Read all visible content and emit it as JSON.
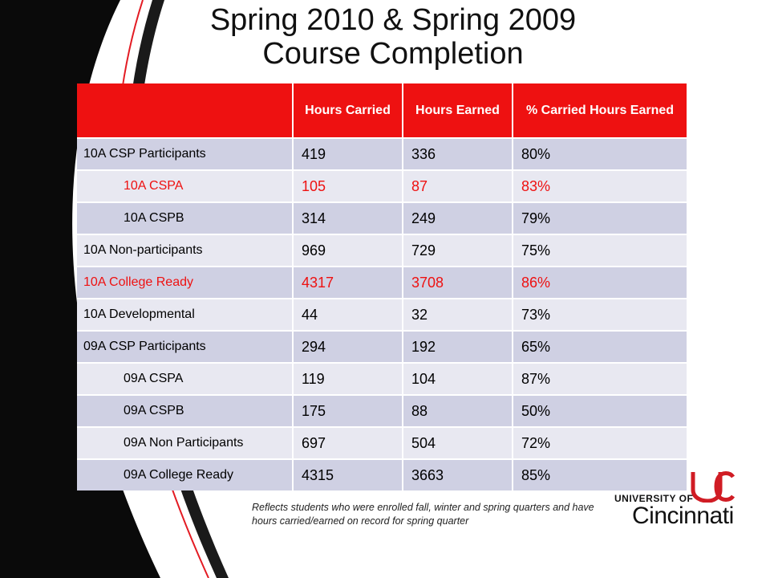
{
  "title": {
    "line1": "Spring 2010 & Spring 2009",
    "line2": "Course Completion"
  },
  "table": {
    "headers": [
      "",
      "Hours Carried",
      "Hours Earned",
      "% Carried Hours Earned"
    ],
    "rows": [
      {
        "label": "10A CSP Participants",
        "carried": "419",
        "earned": "336",
        "pct": "80%",
        "indent": false,
        "highlight": false
      },
      {
        "label": "10A CSPA",
        "carried": "105",
        "earned": "87",
        "pct": "83%",
        "indent": true,
        "highlight": true
      },
      {
        "label": "10A CSPB",
        "carried": "314",
        "earned": "249",
        "pct": "79%",
        "indent": true,
        "highlight": false
      },
      {
        "label": "10A Non-participants",
        "carried": "969",
        "earned": "729",
        "pct": "75%",
        "indent": false,
        "highlight": false
      },
      {
        "label": "10A College Ready",
        "carried": "4317",
        "earned": "3708",
        "pct": "86%",
        "indent": false,
        "highlight": true
      },
      {
        "label": "10A Developmental",
        "carried": "44",
        "earned": "32",
        "pct": "73%",
        "indent": false,
        "highlight": false
      },
      {
        "label": "09A CSP Participants",
        "carried": "294",
        "earned": "192",
        "pct": "65%",
        "indent": false,
        "highlight": false
      },
      {
        "label": "09A CSPA",
        "carried": "119",
        "earned": "104",
        "pct": "87%",
        "indent": true,
        "highlight": false
      },
      {
        "label": "09A CSPB",
        "carried": "175",
        "earned": "88",
        "pct": "50%",
        "indent": true,
        "highlight": false
      },
      {
        "label": "09A Non Participants",
        "carried": "697",
        "earned": "504",
        "pct": "72%",
        "indent": true,
        "highlight": false
      },
      {
        "label": "09A College Ready",
        "carried": "4315",
        "earned": "3663",
        "pct": "85%",
        "indent": true,
        "highlight": false
      }
    ]
  },
  "footnote": "Reflects students who were enrolled fall, winter and spring quarters and have hours carried/earned on record for spring quarter",
  "logo": {
    "line1": "UNIVERSITY OF",
    "line2": "Cincinnati"
  },
  "colors": {
    "accent_red": "#ee1111",
    "row_dark": "#cfd0e3",
    "row_light": "#e8e8f1"
  }
}
